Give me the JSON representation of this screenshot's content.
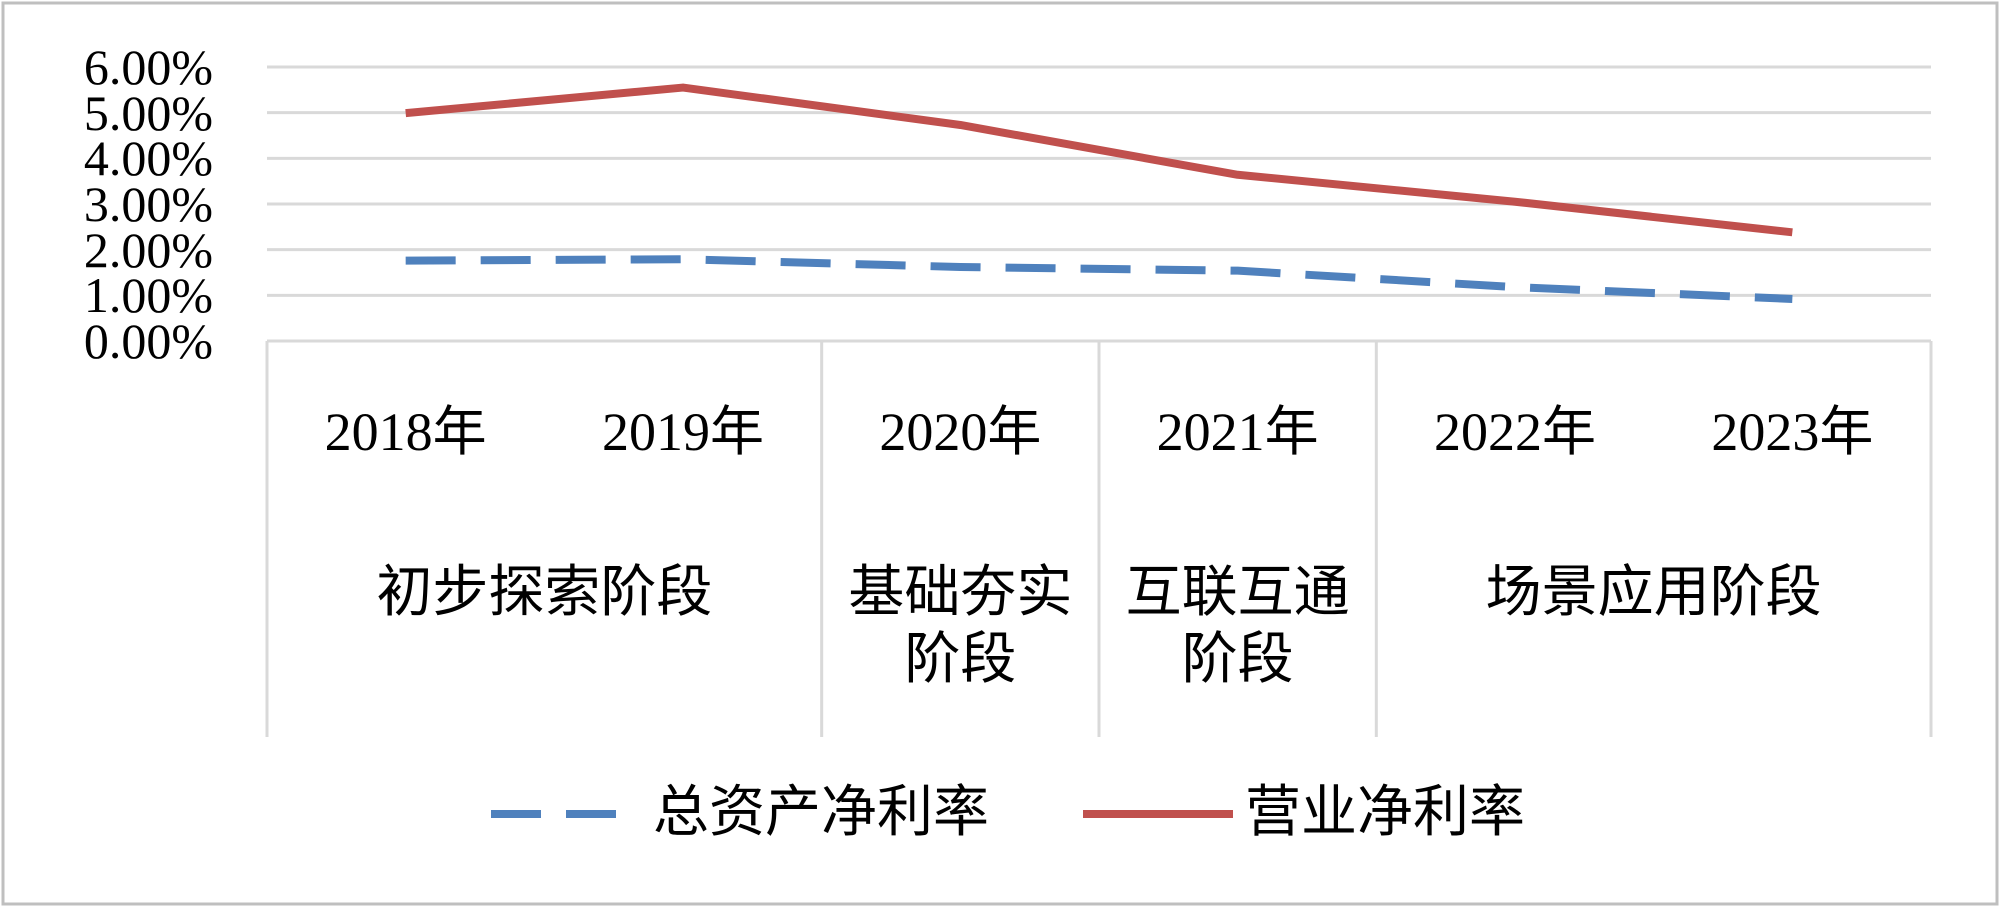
{
  "chart_data": {
    "type": "line",
    "category_groups": [
      {
        "label": "初步探索阶段",
        "categories": [
          "2018年",
          "2019年"
        ]
      },
      {
        "label": "基础夯实阶段",
        "categories": [
          "2020年"
        ]
      },
      {
        "label": "互联互通阶段",
        "categories": [
          "2021年"
        ]
      },
      {
        "label": "场景应用阶段",
        "categories": [
          "2022年",
          "2023年"
        ]
      }
    ],
    "series": [
      {
        "name": "总资产净利率",
        "color": "#4f81bd",
        "dashed": true,
        "values": [
          1.76,
          1.79,
          1.62,
          1.54,
          1.18,
          0.92
        ]
      },
      {
        "name": "营业净利率",
        "color": "#c0504d",
        "dashed": false,
        "values": [
          4.99,
          5.55,
          4.73,
          3.64,
          3.05,
          2.38
        ]
      }
    ],
    "ylim": [
      0,
      6
    ],
    "yticks": [
      {
        "value": 0,
        "label": "0.00%"
      },
      {
        "value": 1,
        "label": "1.00%"
      },
      {
        "value": 2,
        "label": "2.00%"
      },
      {
        "value": 3,
        "label": "3.00%"
      },
      {
        "value": 4,
        "label": "4.00%"
      },
      {
        "value": 5,
        "label": "5.00%"
      },
      {
        "value": 6,
        "label": "6.00%"
      }
    ],
    "grid": true,
    "legend": "bottom"
  }
}
